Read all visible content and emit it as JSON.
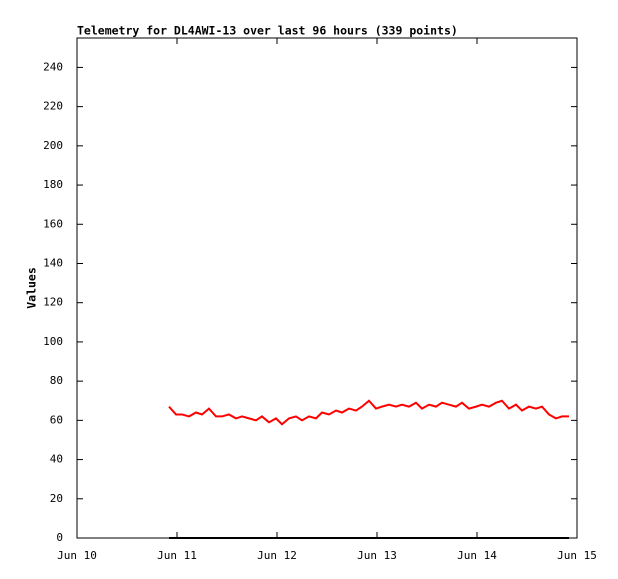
{
  "chart_data": {
    "type": "line",
    "title": "Telemetry for DL4AWI-13 over last 96 hours (339 points)",
    "y_label": "Values",
    "x": [
      10.92,
      10.99,
      11.05,
      11.12,
      11.19,
      11.25,
      11.32,
      11.39,
      11.45,
      11.52,
      11.59,
      11.65,
      11.72,
      11.79,
      11.85,
      11.92,
      11.99,
      12.05,
      12.12,
      12.19,
      12.25,
      12.32,
      12.39,
      12.45,
      12.52,
      12.59,
      12.65,
      12.72,
      12.79,
      12.85,
      12.92,
      12.99,
      13.05,
      13.12,
      13.19,
      13.25,
      13.32,
      13.39,
      13.45,
      13.52,
      13.59,
      13.65,
      13.72,
      13.79,
      13.85,
      13.92,
      13.99,
      14.05,
      14.12,
      14.19,
      14.25,
      14.32,
      14.39,
      14.45,
      14.52,
      14.59,
      14.65,
      14.72,
      14.79,
      14.85,
      14.92
    ],
    "series": [
      {
        "color": "#ff0000",
        "values": [
          67,
          63,
          63,
          62,
          64,
          63,
          66,
          62,
          62,
          63,
          61,
          62,
          61,
          60,
          62,
          59,
          61,
          58,
          61,
          62,
          60,
          62,
          61,
          64,
          63,
          65,
          64,
          66,
          65,
          67,
          70,
          66,
          67,
          68,
          67,
          68,
          67,
          69,
          66,
          68,
          67,
          69,
          68,
          67,
          69,
          66,
          67,
          68,
          67,
          69,
          70,
          66,
          68,
          65,
          67,
          66,
          67,
          63,
          61,
          62,
          62
        ]
      },
      {
        "color": "#000000",
        "values": [
          0,
          0,
          0,
          0,
          0,
          0,
          0,
          0,
          0,
          0,
          0,
          0,
          0,
          0,
          0,
          0,
          0,
          0,
          0,
          0,
          0,
          0,
          0,
          0,
          0,
          0,
          0,
          0,
          0,
          0,
          0,
          0,
          0,
          0,
          0,
          0,
          0,
          0,
          0,
          0,
          0,
          0,
          0,
          0,
          0,
          0,
          0,
          0,
          0,
          0,
          0,
          0,
          0,
          0,
          0,
          0,
          0,
          0,
          0,
          0,
          0
        ]
      }
    ],
    "xlim": [
      10,
      15
    ],
    "xticks": [
      {
        "value": 10,
        "label": "Jun 10"
      },
      {
        "value": 11,
        "label": "Jun 11"
      },
      {
        "value": 12,
        "label": "Jun 12"
      },
      {
        "value": 13,
        "label": "Jun 13"
      },
      {
        "value": 14,
        "label": "Jun 14"
      },
      {
        "value": 15,
        "label": "Jun 15"
      }
    ],
    "ylim": [
      0,
      255
    ],
    "yticks": [
      0,
      20,
      40,
      60,
      80,
      100,
      120,
      140,
      160,
      180,
      200,
      220,
      240
    ]
  }
}
